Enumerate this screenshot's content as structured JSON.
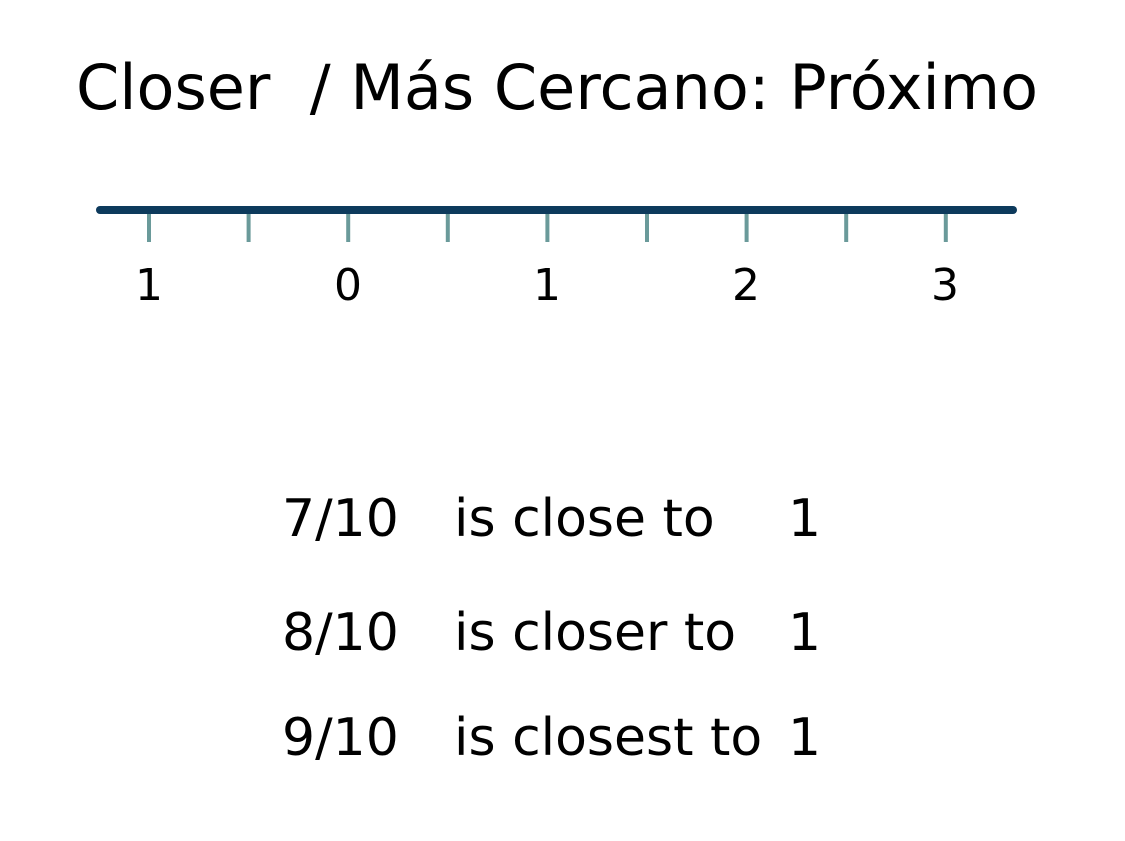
{
  "title": "Closer  / Más Cercano: Próximo",
  "number_line": {
    "line_color": "#0d3a5c",
    "tick_color": "#6a9a9a",
    "labels": [
      "1",
      "0",
      "1",
      "2",
      "3"
    ]
  },
  "comparisons": [
    {
      "fraction": "7/10",
      "phrase": "is close to",
      "target": "1"
    },
    {
      "fraction": "8/10",
      "phrase": "is closer to",
      "target": "1"
    },
    {
      "fraction": "9/10",
      "phrase": "is closest to",
      "target": "1"
    }
  ]
}
